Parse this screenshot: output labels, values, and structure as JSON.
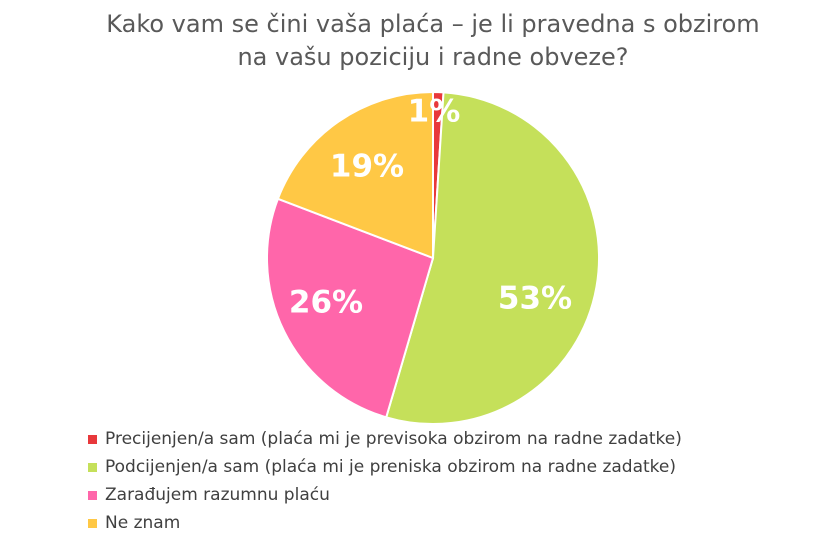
{
  "chart_data": {
    "type": "pie",
    "title": [
      "Kako vam se čini vaša plaća – je li pravedna s obzirom",
      "na vašu poziciju i radne obveze?"
    ],
    "slices": [
      {
        "name": "Precijenjen/a sam (plaća mi je previsoka obzirom na radne zadatke)",
        "value": 1,
        "label": "1%",
        "color": "#e8383b"
      },
      {
        "name": "Podcijenjen/a sam (plaća mi je preniska obzirom na radne zadatke)",
        "value": 53,
        "label": "53%",
        "color": "#c5e05a"
      },
      {
        "name": "Zarađujem razumnu plaću",
        "value": 26,
        "label": "26%",
        "color": "#ff66aa"
      },
      {
        "name": "Ne znam",
        "value": 19,
        "label": "19%",
        "color": "#ffc845"
      }
    ],
    "legend_position": "bottom-left"
  }
}
